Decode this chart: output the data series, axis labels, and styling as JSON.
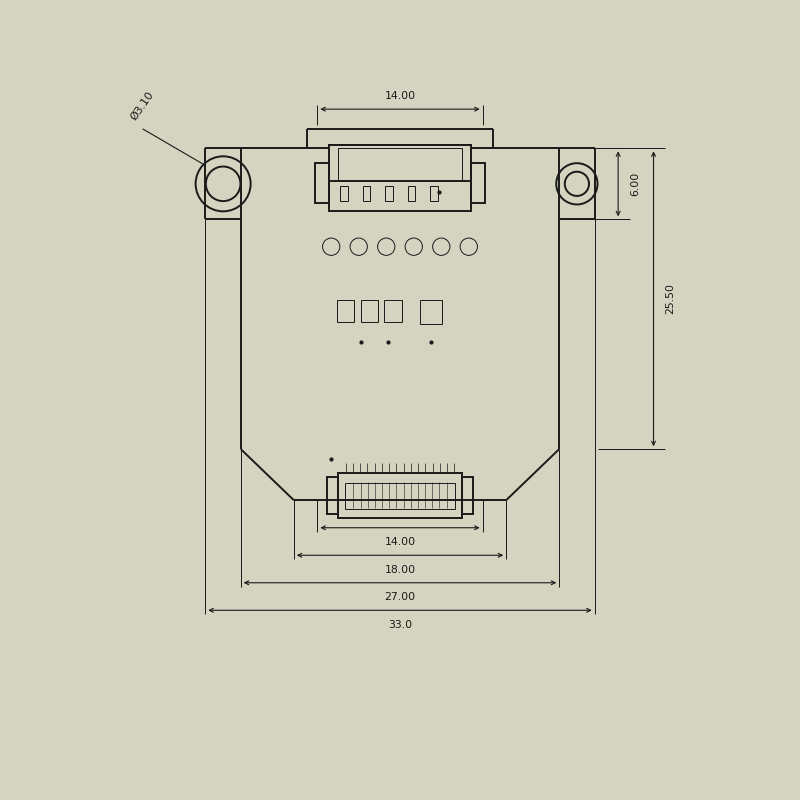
{
  "bg_color": "#d4d4c0",
  "line_color": "#1a1a1a",
  "dim_color": "#1a1a1a",
  "fig_size": [
    8.0,
    8.0
  ],
  "dpi": 100,
  "dims": {
    "top_14": "14.00",
    "inner_14": "14.00",
    "inner_18": "18.00",
    "outer_27": "27.00",
    "outer_33": "33.0",
    "right_6": "6.00",
    "right_25": "25.50",
    "hole_dia": "Ø3.10"
  }
}
